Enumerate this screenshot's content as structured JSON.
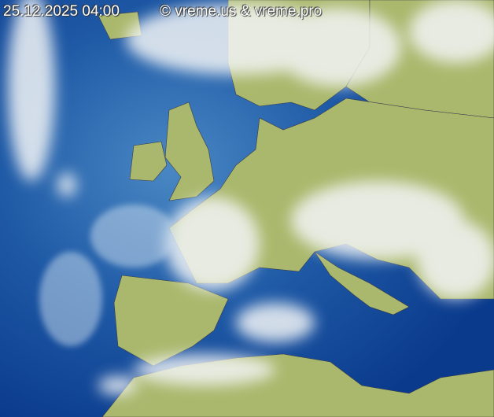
{
  "timestamp": "25.12.2025 04:00",
  "copyright": "© vreme.us & vreme.pro",
  "colors": {
    "ocean_deep": "#0a3a8c",
    "ocean_light": "#3a7cbc",
    "land": "#a9b86c",
    "cloud": "#f2f4f6",
    "border": "#3a3a4a"
  }
}
